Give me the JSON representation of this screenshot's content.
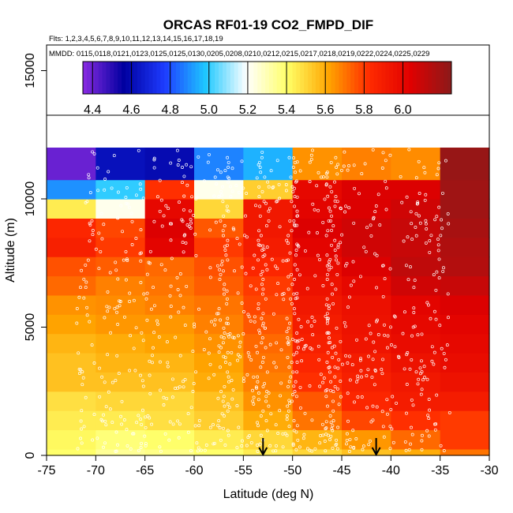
{
  "chart_data": {
    "type": "heatmap",
    "title": "ORCAS RF01-19 CO2_FMPD_DIF",
    "flights_line": "Flts: 1,2,3,4,5,6,7,8,9,10,11,12,13,14,15,16,17,18,19",
    "dates_line": "MMDD: 0115,0118,0121,0123,0125,0125,0130,0205,0208,0210,0212,0215,0217,0218,0219,0222,0224,0225,0229",
    "xlabel": "Latitude (deg N)",
    "ylabel": "Altitude (m)",
    "xlim": [
      -75,
      -30
    ],
    "ylim": [
      0,
      16000
    ],
    "x_ticks": [
      "-75",
      "-70",
      "-65",
      "-60",
      "-55",
      "-50",
      "-45",
      "-40",
      "-35",
      "-30"
    ],
    "y_ticks": [
      "0",
      "5000",
      "10000",
      "15000"
    ],
    "colorbar": {
      "min": 4.35,
      "max": 6.25,
      "ticks": [
        "4.4",
        "4.6",
        "4.8",
        "5.0",
        "5.2",
        "5.4",
        "5.6",
        "5.8",
        "6.0"
      ],
      "tick_values": [
        4.4,
        4.6,
        4.8,
        5.0,
        5.2,
        5.4,
        5.6,
        5.8,
        6.0
      ],
      "stops": [
        "#8a2be2",
        "#0000a0",
        "#1e3cff",
        "#1ec8ff",
        "#ffffff",
        "#ffff66",
        "#ffa500",
        "#ff2a00",
        "#e00000",
        "#8b1a1a"
      ]
    },
    "lat_bins": [
      -75,
      -70,
      -65,
      -60,
      -55,
      -50,
      -45,
      -40,
      -35,
      -30
    ],
    "alt_bins": [
      0,
      250,
      1000,
      1750,
      2500,
      3250,
      4000,
      4750,
      5500,
      6250,
      7000,
      7750,
      8500,
      9250,
      10000,
      10750,
      12000
    ],
    "cells": [
      [
        5.4,
        5.34,
        5.36,
        5.4,
        5.45,
        5.5,
        5.55,
        5.6,
        5.7
      ],
      [
        5.42,
        5.38,
        5.4,
        5.45,
        5.5,
        5.58,
        5.64,
        5.72,
        5.8
      ],
      [
        5.45,
        5.45,
        5.48,
        5.52,
        5.6,
        5.7,
        5.78,
        5.82,
        5.8
      ],
      [
        5.48,
        5.5,
        5.5,
        5.55,
        5.65,
        5.75,
        5.85,
        5.9,
        5.9
      ],
      [
        5.55,
        5.55,
        5.55,
        5.6,
        5.68,
        5.82,
        5.88,
        5.92,
        5.95
      ],
      [
        5.55,
        5.58,
        5.58,
        5.62,
        5.7,
        5.85,
        5.9,
        5.95,
        5.98
      ],
      [
        5.58,
        5.6,
        5.62,
        5.65,
        5.72,
        5.88,
        5.94,
        5.98,
        6.0
      ],
      [
        5.62,
        5.64,
        5.64,
        5.68,
        5.75,
        5.9,
        5.95,
        6.0,
        6.02
      ],
      [
        5.65,
        5.66,
        5.68,
        5.7,
        5.78,
        5.92,
        5.96,
        6.02,
        6.05
      ],
      [
        5.72,
        5.68,
        5.7,
        5.74,
        5.8,
        5.95,
        6.0,
        6.08,
        6.1
      ],
      [
        5.76,
        5.74,
        5.72,
        5.76,
        5.85,
        5.98,
        6.05,
        6.12,
        6.15
      ],
      [
        5.88,
        5.8,
        6.02,
        5.8,
        5.9,
        6.02,
        6.08,
        6.1,
        6.16
      ],
      [
        5.85,
        5.78,
        6.05,
        5.75,
        5.92,
        6.05,
        6.08,
        6.1,
        6.18
      ],
      [
        5.45,
        5.22,
        6.0,
        5.5,
        5.92,
        6.02,
        6.05,
        6.08,
        6.2
      ],
      [
        4.9,
        5.0,
        5.82,
        5.22,
        5.52,
        6.0,
        6.05,
        6.05,
        6.2
      ],
      [
        4.4,
        4.62,
        4.6,
        4.88,
        4.95,
        5.65,
        5.68,
        5.66,
        6.22
      ]
    ],
    "arrows_at_lat": [
      -53.0,
      -41.5
    ]
  }
}
